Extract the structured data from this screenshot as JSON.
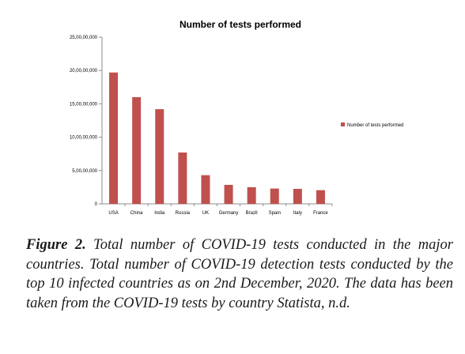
{
  "chart_data": {
    "type": "bar",
    "title": "Number of tests performed",
    "categories": [
      "USA",
      "China",
      "India",
      "Russia",
      "UK",
      "Germany",
      "Brazil",
      "Spain",
      "Italy",
      "France"
    ],
    "series": [
      {
        "name": "Number of tests performed",
        "values": [
          197000000,
          160000000,
          142000000,
          77000000,
          43000000,
          28500000,
          25000000,
          23000000,
          22500000,
          20500000
        ],
        "color": "#c0504d"
      }
    ],
    "xlabel": "",
    "ylabel": "",
    "ylim": [
      0,
      250000000
    ],
    "y_ticks": [
      {
        "value": 0,
        "label": "0"
      },
      {
        "value": 50000000,
        "label": "5,00,00,000"
      },
      {
        "value": 100000000,
        "label": "10,00,00,000"
      },
      {
        "value": 150000000,
        "label": "15,00,00,000"
      },
      {
        "value": 200000000,
        "label": "20,00,00,000"
      },
      {
        "value": 250000000,
        "label": "25,00,00,000"
      }
    ],
    "grid": false,
    "legend_position": "right"
  },
  "caption": {
    "label": "Figure 2.",
    "text": "Total number of COVID-19 tests conducted in the major countries. Total number of COVID-19 detection tests conducted by the top 10 infected countries as on 2nd December, 2020. The data has been taken from the COVID-19 tests by country Statista, n.d."
  }
}
